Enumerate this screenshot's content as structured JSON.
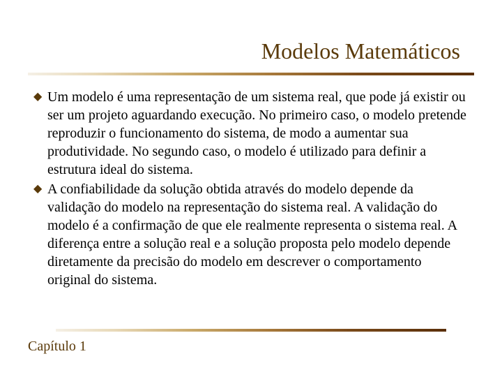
{
  "slide": {
    "title": "Modelos Matemáticos",
    "bullets": [
      "Um modelo é uma representação de um sistema real, que pode já existir ou ser um projeto aguardando execução. No primeiro caso, o modelo pretende reproduzir o funcionamento do sistema, de modo a aumentar sua produtividade. No segundo caso, o modelo é utilizado para definir a estrutura ideal do sistema.",
      "A confiabilidade da solução obtida através do modelo depende da validação do modelo na representação do sistema real. A validação do modelo é a confirmação de que ele realmente representa o sistema real. A diferença entre a solução real e a solução proposta pelo modelo depende diretamente da precisão do modelo em descrever o comportamento original do sistema."
    ],
    "footer": "Capítulo 1"
  },
  "style": {
    "title_color": "#5a3a0a",
    "title_fontsize": 32,
    "body_fontsize": 20,
    "body_lineheight": 26,
    "bullet_color": "#5a3a0a",
    "footer_color": "#5a3a0a",
    "footer_fontsize": 20,
    "divider_gradient_stops": [
      "#f5f0e6",
      "#e8d9b8",
      "#c9a96a",
      "#a6783a",
      "#7a4a1a",
      "#5a2f0a"
    ],
    "background_color": "#ffffff",
    "font_family": "Times New Roman"
  }
}
